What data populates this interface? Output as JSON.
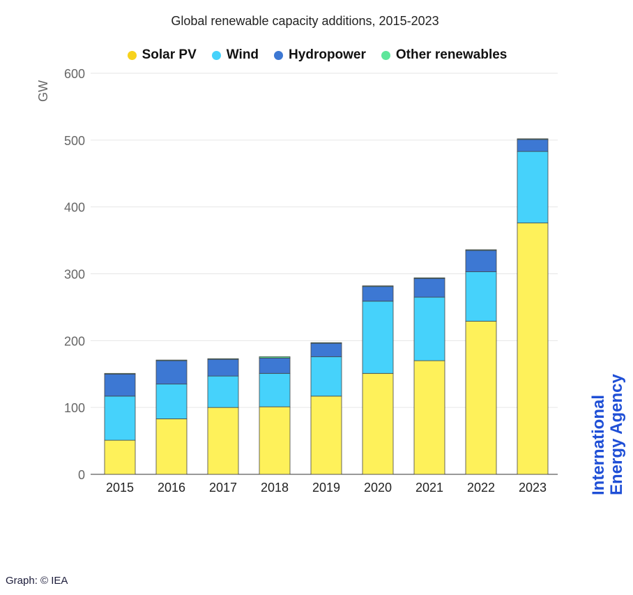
{
  "chart_data": {
    "type": "bar",
    "stacked": true,
    "title": "Global renewable capacity additions, 2015-2023",
    "ylabel": "GW",
    "xlabel": "",
    "ylim": [
      0,
      600
    ],
    "yticks": [
      0,
      100,
      200,
      300,
      400,
      500,
      600
    ],
    "grid": true,
    "legend_position": "top",
    "categories": [
      "2015",
      "2016",
      "2017",
      "2018",
      "2019",
      "2020",
      "2021",
      "2022",
      "2023"
    ],
    "series": [
      {
        "name": "Solar PV",
        "color": "#fef15a",
        "legend_color": "#f7d21c",
        "values": [
          51,
          83,
          100,
          101,
          117,
          151,
          170,
          229,
          376
        ]
      },
      {
        "name": "Wind",
        "color": "#46d2fb",
        "values": [
          66,
          52,
          47,
          50,
          59,
          108,
          95,
          74,
          107
        ]
      },
      {
        "name": "Hydropower",
        "color": "#3d78d3",
        "values": [
          33,
          35,
          25,
          23,
          20,
          22,
          28,
          32,
          18
        ]
      },
      {
        "name": "Other renewables",
        "color": "#5ee69a",
        "values": [
          1,
          1,
          1,
          2,
          1,
          1,
          1,
          1,
          1
        ]
      }
    ]
  },
  "branding": {
    "logo": "International Energy Agency",
    "logo_line1": "International",
    "logo_line2": "Energy Agency",
    "color": "#1f4fd6"
  },
  "credit": "Graph: © IEA"
}
